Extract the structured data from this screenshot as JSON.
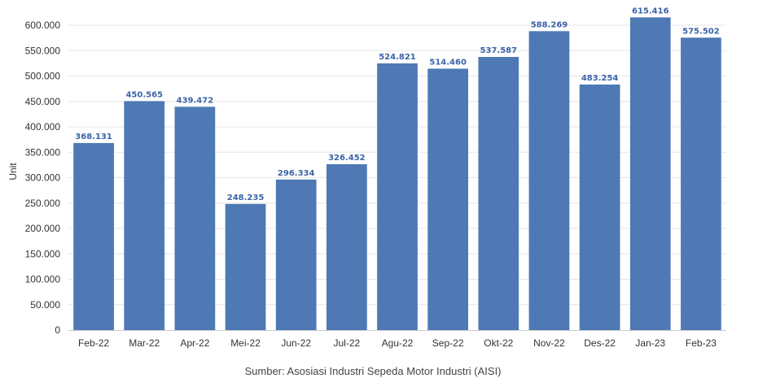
{
  "chart_data": {
    "type": "bar",
    "categories": [
      "Feb-22",
      "Mar-22",
      "Apr-22",
      "Mei-22",
      "Jun-22",
      "Jul-22",
      "Agu-22",
      "Sep-22",
      "Okt-22",
      "Nov-22",
      "Des-22",
      "Jan-23",
      "Feb-23"
    ],
    "values": [
      368131,
      450565,
      439472,
      248235,
      296334,
      326452,
      524821,
      514460,
      537587,
      588269,
      483254,
      615416,
      575502
    ],
    "value_labels": [
      "368.131",
      "450.565",
      "439.472",
      "248.235",
      "296.334",
      "326.452",
      "524.821",
      "514.460",
      "537.587",
      "588.269",
      "483.254",
      "615.416",
      "575.502"
    ],
    "ylabel": "Unit",
    "xlabel": "",
    "ylim": [
      0,
      600000
    ],
    "yticks": [
      0,
      50000,
      100000,
      150000,
      200000,
      250000,
      300000,
      350000,
      400000,
      450000,
      500000,
      550000,
      600000
    ],
    "ytick_labels": [
      "0",
      "50.000",
      "100.000",
      "150.000",
      "200.000",
      "250.000",
      "300.000",
      "350.000",
      "400.000",
      "450.000",
      "500.000",
      "550.000",
      "600.000"
    ],
    "grid": true,
    "bar_color": "#4e79b5",
    "label_color": "#3b63a8"
  },
  "source_note": "Sumber: Asosiasi Industri Sepeda Motor Industri (AISI)"
}
